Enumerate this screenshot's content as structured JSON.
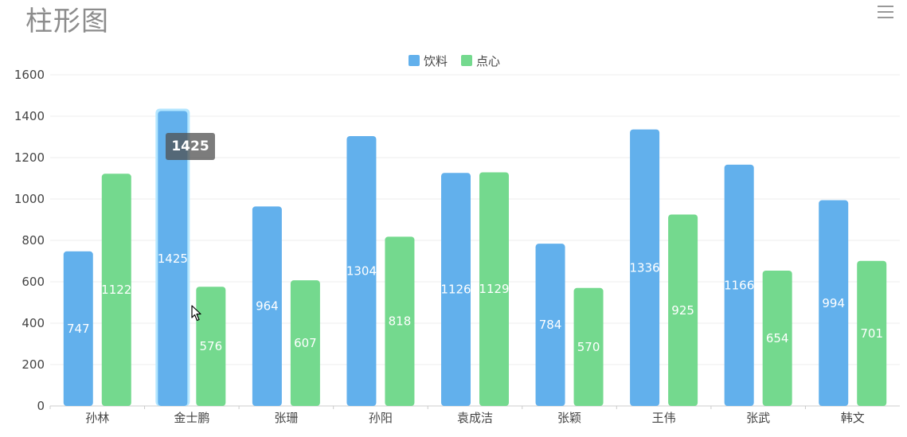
{
  "header": {
    "title": "柱形图",
    "menu_icon": "hamburger-menu-icon"
  },
  "tooltip": {
    "value": "1425"
  },
  "colors": {
    "series_1": "#62b0ec",
    "series_2": "#74d98e",
    "highlight_outline": "#b3e6ff",
    "grid": "#eeeeee",
    "axis": "#cccccc"
  },
  "chart_data": {
    "type": "bar",
    "title": "柱形图",
    "xlabel": "",
    "ylabel": "",
    "ylim": [
      0,
      1600
    ],
    "yticks": [
      "0",
      "200",
      "400",
      "600",
      "800",
      "1000",
      "1200",
      "1400",
      "1600"
    ],
    "categories": [
      "孙林",
      "金士鹏",
      "张珊",
      "孙阳",
      "袁成洁",
      "张颖",
      "王伟",
      "张武",
      "韩文"
    ],
    "series": [
      {
        "name": "饮料",
        "values": [
          747,
          1425,
          964,
          1304,
          1126,
          784,
          1336,
          1166,
          994
        ]
      },
      {
        "name": "点心",
        "values": [
          1122,
          576,
          607,
          818,
          1129,
          570,
          925,
          654,
          701
        ]
      }
    ],
    "highlighted": {
      "series": "饮料",
      "category": "金士鹏"
    },
    "legend_position": "top-center",
    "grid": true
  }
}
